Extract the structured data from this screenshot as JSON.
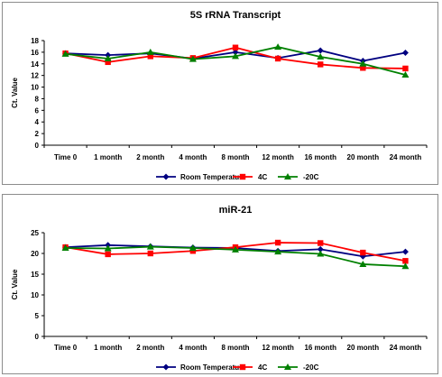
{
  "chart_data": [
    {
      "type": "line",
      "title": "5S rRNA Transcript",
      "xlabel": "",
      "ylabel": "Ct. Value",
      "categories": [
        "Time 0",
        "1 month",
        "2 month",
        "4 month",
        "8 month",
        "12 month",
        "16 month",
        "20 month",
        "24 month"
      ],
      "yticks": [
        "0",
        "2",
        "4",
        "6",
        "8",
        "10",
        "12",
        "14",
        "16",
        "18"
      ],
      "ylim": [
        0,
        18
      ],
      "grid": false,
      "legend_position": "bottom",
      "series": [
        {
          "name": "Room Temperature",
          "color": "#000080",
          "marker": "diamond",
          "values": [
            15.8,
            15.5,
            15.8,
            14.9,
            16.0,
            15.0,
            16.3,
            14.5,
            15.9
          ]
        },
        {
          "name": "4C",
          "color": "#ff0000",
          "marker": "square",
          "values": [
            15.8,
            14.3,
            15.3,
            15.0,
            16.8,
            14.9,
            13.9,
            13.3,
            13.2
          ]
        },
        {
          "name": "-20C",
          "color": "#008000",
          "marker": "triangle",
          "values": [
            15.7,
            14.9,
            16.0,
            14.8,
            15.3,
            16.9,
            15.2,
            14.0,
            12.1
          ]
        }
      ]
    },
    {
      "type": "line",
      "title": "miR-21",
      "xlabel": "",
      "ylabel": "Ct. Value",
      "categories": [
        "Time 0",
        "1 month",
        "2 month",
        "4 month",
        "8 month",
        "12 month",
        "16 month",
        "20 month",
        "24 month"
      ],
      "yticks": [
        "0",
        "5",
        "10",
        "15",
        "20",
        "25"
      ],
      "ylim": [
        0,
        25
      ],
      "grid": false,
      "legend_position": "bottom",
      "series": [
        {
          "name": "Room Temperature",
          "color": "#000080",
          "marker": "diamond",
          "values": [
            21.5,
            22.0,
            21.7,
            21.4,
            21.3,
            20.6,
            21.0,
            19.3,
            20.4
          ]
        },
        {
          "name": "4C",
          "color": "#ff0000",
          "marker": "square",
          "values": [
            21.5,
            19.8,
            20.0,
            20.6,
            21.5,
            22.6,
            22.5,
            20.2,
            18.2
          ]
        },
        {
          "name": "-20C",
          "color": "#008000",
          "marker": "triangle",
          "values": [
            21.3,
            21.2,
            21.6,
            21.3,
            20.9,
            20.4,
            19.9,
            17.4,
            16.9
          ]
        }
      ]
    }
  ]
}
